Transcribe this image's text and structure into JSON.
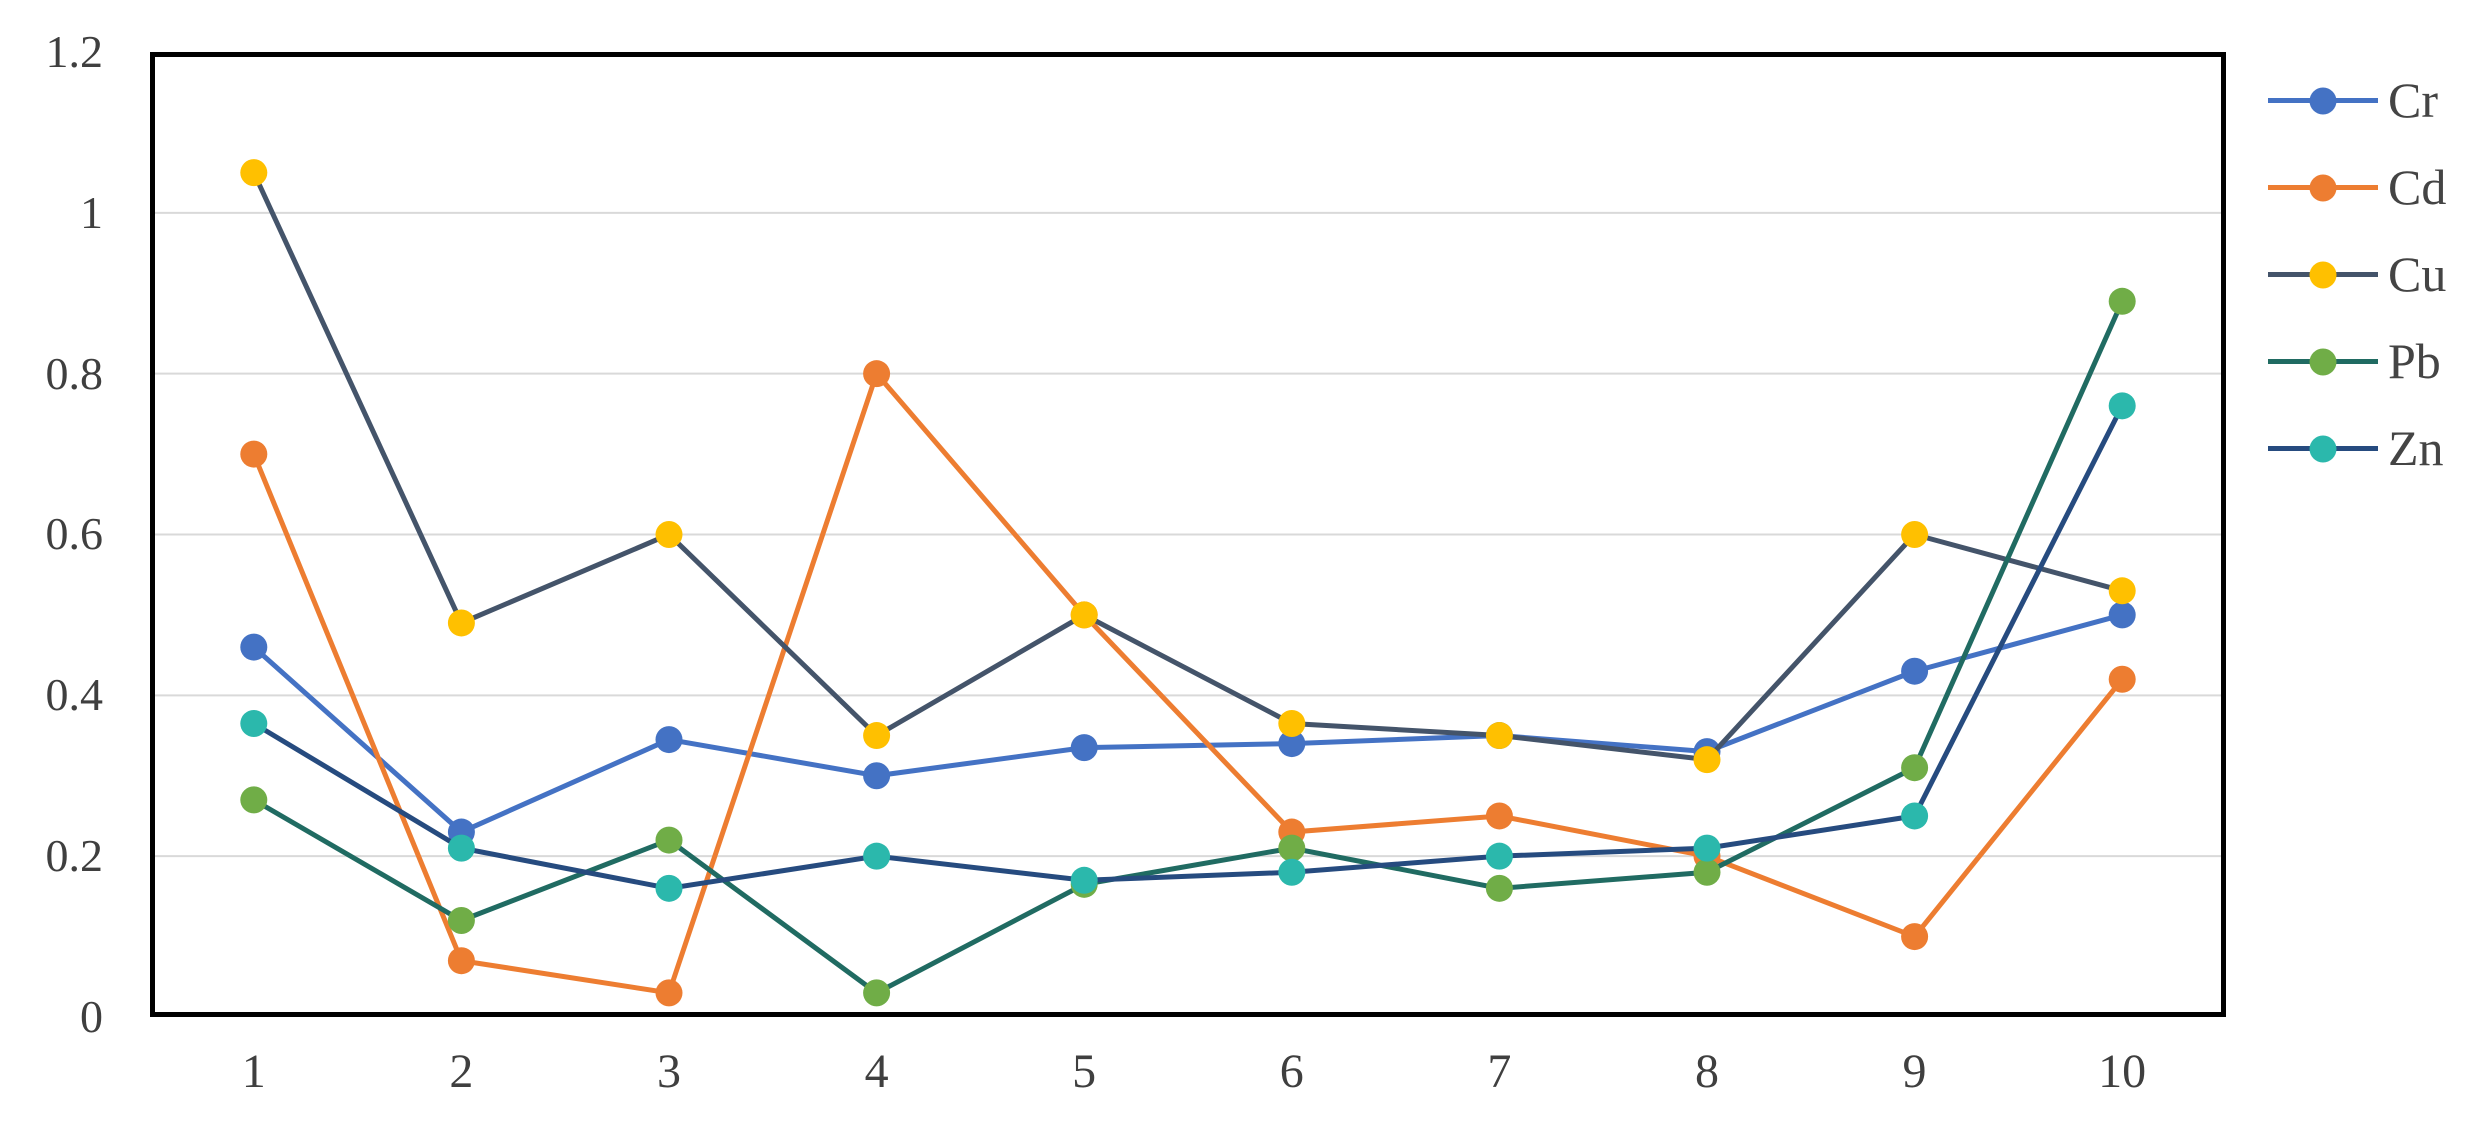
{
  "chart_data": {
    "type": "line",
    "title": "",
    "xlabel": "",
    "ylabel": "",
    "x": [
      "1",
      "2",
      "3",
      "4",
      "5",
      "6",
      "7",
      "8",
      "9",
      "10"
    ],
    "ylim": [
      0,
      1.2
    ],
    "y_tick_labels": [
      "1.2",
      "1",
      "0.8",
      "0.6",
      "0.4",
      "0.2",
      "0"
    ],
    "y_gridlines": [
      0.2,
      0.4,
      0.6,
      0.8,
      1.0
    ],
    "grid": "horizontal",
    "gridline_color": "#d9d9d9",
    "axis_border_color": "#000000",
    "legend_position": "right",
    "series": [
      {
        "name": "Cr",
        "line_color": "#4472c4",
        "marker_color": "#4472c4",
        "values": [
          0.46,
          0.23,
          0.345,
          0.3,
          0.335,
          0.34,
          0.35,
          0.33,
          0.43,
          0.5
        ]
      },
      {
        "name": "Cd",
        "line_color": "#ed7d31",
        "marker_color": "#ed7d31",
        "values": [
          0.7,
          0.07,
          0.03,
          0.8,
          0.5,
          0.23,
          0.25,
          0.2,
          0.1,
          0.42
        ]
      },
      {
        "name": "Cu",
        "line_color": "#44546a",
        "marker_color": "#ffc000",
        "values": [
          1.05,
          0.49,
          0.6,
          0.35,
          0.5,
          0.365,
          0.35,
          0.32,
          0.6,
          0.53
        ]
      },
      {
        "name": "Pb",
        "line_color": "#206b62",
        "marker_color": "#70ad47",
        "values": [
          0.27,
          0.12,
          0.22,
          0.03,
          0.165,
          0.21,
          0.16,
          0.18,
          0.31,
          0.89
        ]
      },
      {
        "name": "Zn",
        "line_color": "#264b7f",
        "marker_color": "#2bb8ac",
        "values": [
          0.365,
          0.21,
          0.16,
          0.2,
          0.17,
          0.18,
          0.2,
          0.21,
          0.25,
          0.76
        ]
      }
    ]
  }
}
